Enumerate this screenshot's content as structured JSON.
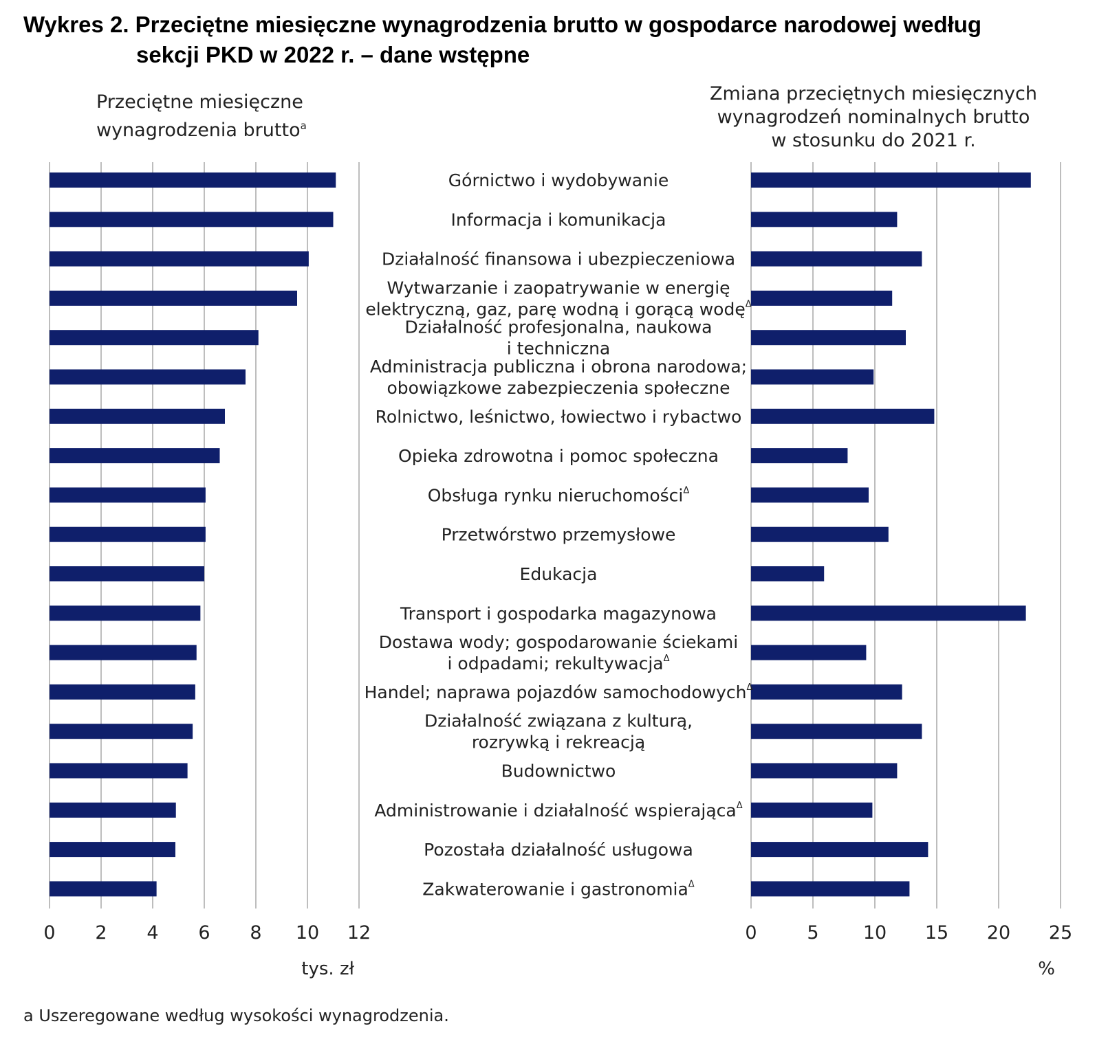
{
  "title_line1": "Wykres 2. Przeciętne miesięczne wynagrodzenia brutto w gospodarce narodowej według",
  "title_line2": "sekcji PKD w 2022 r. – dane wstępne",
  "footnote": "a Uszeregowane według wysokości wynagrodzenia.",
  "colors": {
    "bar": "#0f1f6b",
    "grid": "#9a9a9a"
  },
  "chart_data": [
    {
      "type": "bar",
      "orientation": "horizontal",
      "title_lines": [
        "Przeciętne miesięczne",
        "wynagrodzenia brutto"
      ],
      "title_superscript": "a",
      "unit": "tys. zł",
      "xlim": [
        0,
        12
      ],
      "ticks": [
        "0",
        "2",
        "4",
        "6",
        "8",
        "10",
        "12"
      ],
      "grid": true,
      "values": [
        11.1,
        11.0,
        10.05,
        9.6,
        8.1,
        7.6,
        6.8,
        6.6,
        6.05,
        6.05,
        6.0,
        5.85,
        5.7,
        5.65,
        5.55,
        5.35,
        4.9,
        4.88,
        4.15
      ]
    },
    {
      "type": "bar",
      "orientation": "horizontal",
      "title_lines": [
        "Zmiana przeciętnych miesięcznych",
        "wynagrodzeń nominalnych brutto",
        "w stosunku do 2021 r."
      ],
      "unit": "%",
      "xlim": [
        0,
        25
      ],
      "ticks": [
        "0",
        "5",
        "10",
        "15",
        "20",
        "25"
      ],
      "grid": true,
      "values": [
        22.6,
        11.8,
        13.8,
        11.4,
        12.5,
        9.9,
        14.8,
        7.8,
        9.5,
        11.1,
        5.9,
        22.2,
        9.3,
        12.2,
        13.8,
        11.8,
        9.8,
        14.3,
        12.8
      ]
    }
  ],
  "categories": [
    {
      "lines": [
        "Górnictwo i wydobywanie"
      ],
      "mark": ""
    },
    {
      "lines": [
        "Informacja i komunikacja"
      ],
      "mark": ""
    },
    {
      "lines": [
        "Działalność finansowa i ubezpieczeniowa"
      ],
      "mark": ""
    },
    {
      "lines": [
        "Wytwarzanie i zaopatrywanie w energię",
        "elektryczną, gaz, parę wodną i gorącą wodę"
      ],
      "mark": "Δ"
    },
    {
      "lines": [
        "Działalność profesjonalna, naukowa",
        "i techniczna"
      ],
      "mark": ""
    },
    {
      "lines": [
        "Administracja publiczna i obrona narodowa;",
        "obowiązkowe zabezpieczenia społeczne"
      ],
      "mark": ""
    },
    {
      "lines": [
        "Rolnictwo, leśnictwo, łowiectwo i rybactwo"
      ],
      "mark": ""
    },
    {
      "lines": [
        "Opieka zdrowotna i pomoc społeczna"
      ],
      "mark": ""
    },
    {
      "lines": [
        "Obsługa rynku nieruchomości"
      ],
      "mark": "Δ"
    },
    {
      "lines": [
        "Przetwórstwo przemysłowe"
      ],
      "mark": ""
    },
    {
      "lines": [
        "Edukacja"
      ],
      "mark": ""
    },
    {
      "lines": [
        "Transport i gospodarka magazynowa"
      ],
      "mark": ""
    },
    {
      "lines": [
        "Dostawa wody; gospodarowanie ściekami",
        "i odpadami; rekultywacja"
      ],
      "mark": "Δ"
    },
    {
      "lines": [
        "Handel; naprawa pojazdów samochodowych"
      ],
      "mark": "Δ"
    },
    {
      "lines": [
        "Działalność związana z kulturą,",
        "rozrywką i rekreacją"
      ],
      "mark": ""
    },
    {
      "lines": [
        "Budownictwo"
      ],
      "mark": ""
    },
    {
      "lines": [
        "Administrowanie i działalność wspierająca"
      ],
      "mark": "Δ"
    },
    {
      "lines": [
        "Pozostała działalność usługowa"
      ],
      "mark": ""
    },
    {
      "lines": [
        "Zakwaterowanie i gastronomia"
      ],
      "mark": "Δ"
    }
  ]
}
